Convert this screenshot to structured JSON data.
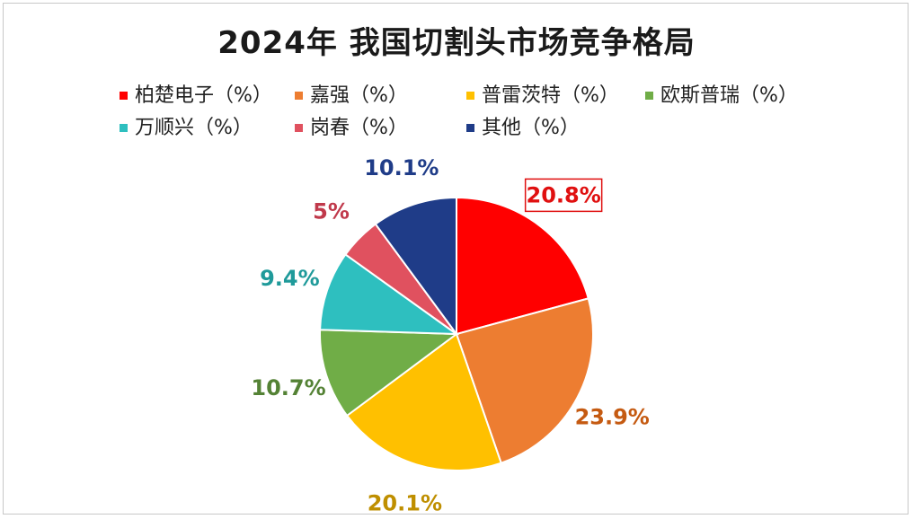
{
  "title": "2024年 我国切割头市场竞争格局",
  "chart_data": {
    "type": "pie",
    "title": "2024年 我国切割头市场竞争格局",
    "legend_position": "top",
    "slices": [
      {
        "label": "柏楚电子（%）",
        "value": 20.8,
        "data_label": "20.8%",
        "color": "#ff0000",
        "label_color": "#e01010"
      },
      {
        "label": "嘉强（%）",
        "value": 23.9,
        "data_label": "23.9%",
        "color": "#ed7d31",
        "label_color": "#c55a11"
      },
      {
        "label": "普雷茨特（%）",
        "value": 20.1,
        "data_label": "20.1%",
        "color": "#ffc000",
        "label_color": "#bf8f00"
      },
      {
        "label": "欧斯普瑞（%）",
        "value": 10.7,
        "data_label": "10.7%",
        "color": "#70ad47",
        "label_color": "#548235"
      },
      {
        "label": "万顺兴（%）",
        "value": 9.4,
        "data_label": "9.4%",
        "color": "#2ebfbf",
        "label_color": "#1f9a9a"
      },
      {
        "label": "岗春（%）",
        "value": 5,
        "data_label": "5%",
        "color": "#e0515f",
        "label_color": "#c0394b"
      },
      {
        "label": "其他（%）",
        "value": 10.1,
        "data_label": "10.1%",
        "color": "#1f3c88",
        "label_color": "#1f3c88"
      }
    ],
    "highlighted_label": "20.8%"
  }
}
